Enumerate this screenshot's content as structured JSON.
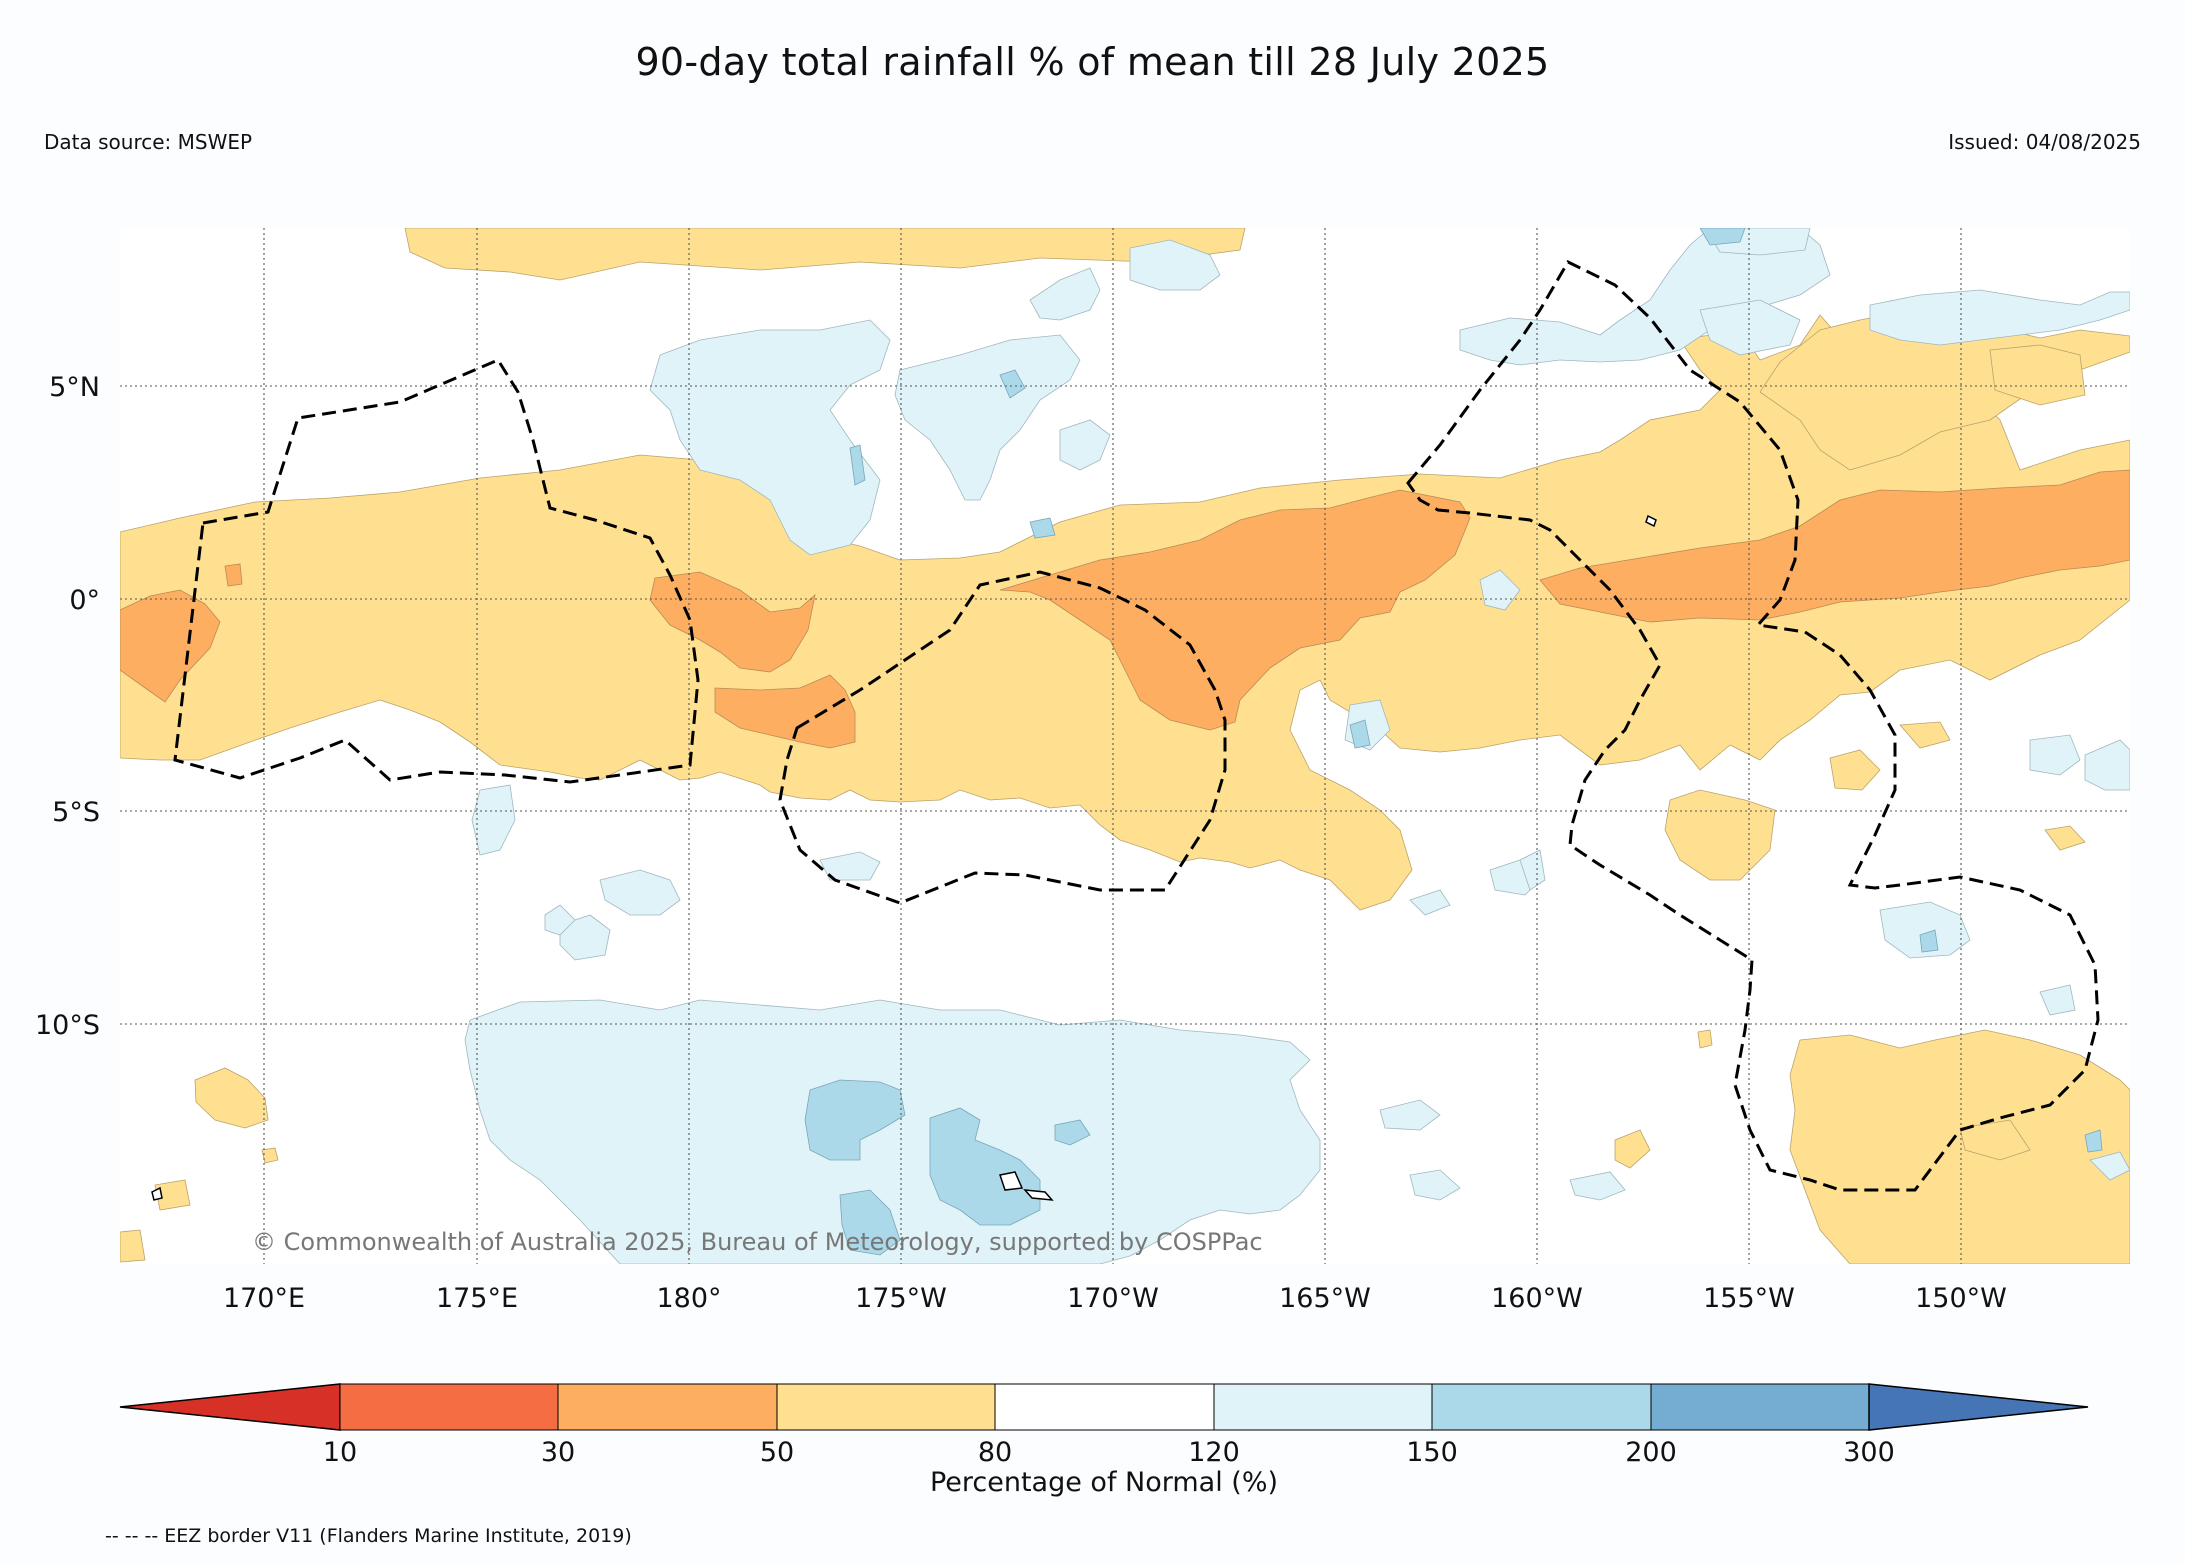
{
  "title": "90-day total rainfall % of mean till 28 July 2025",
  "data_source": "Data source: MSWEP",
  "issued": "Issued: 04/08/2025",
  "copyright": "© Commonwealth of Australia 2025, Bureau of Meteorology, supported by COSPPac",
  "footnote": "-- -- -- EEZ border V11 (Flanders Marine Institute, 2019)",
  "lat_labels": [
    "5°N",
    "0°",
    "5°S",
    "10°S"
  ],
  "lon_labels": [
    "170°E",
    "175°E",
    "180°",
    "175°W",
    "170°W",
    "165°W",
    "160°W",
    "155°W",
    "150°W"
  ],
  "colorbar": {
    "label": "Percentage of Normal (%)",
    "ticks": [
      "10",
      "30",
      "50",
      "80",
      "120",
      "150",
      "200",
      "300"
    ],
    "colors": [
      "#d73027",
      "#f46d43",
      "#fdae61",
      "#fee090",
      "#ffffff",
      "#e0f3f8",
      "#abd9e9",
      "#74add1",
      "#4575b4"
    ]
  },
  "region_colors": {
    "dry_50_80": "#fee090",
    "dry_30_50": "#fdae61",
    "wet_120_150": "#e0f3f8",
    "wet_150_200": "#abd9e9"
  }
}
